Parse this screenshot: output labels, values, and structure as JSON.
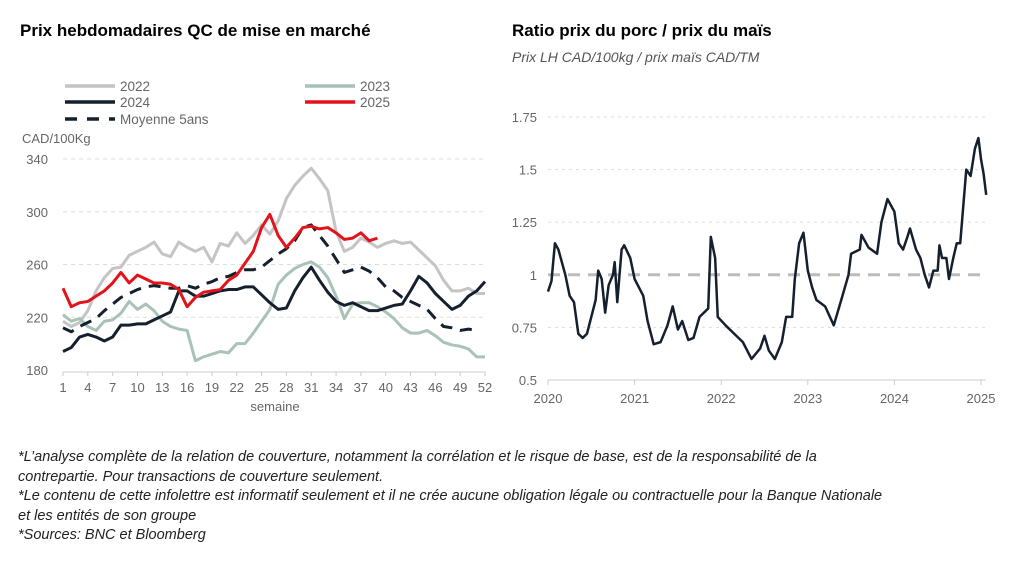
{
  "chart_data": [
    {
      "type": "line",
      "title": "Prix hebdomadaires QC de mise en marché",
      "ylabel": "CAD/100Kg",
      "xlabel": "semaine",
      "ylim": [
        180,
        340
      ],
      "yticks": [
        180,
        220,
        260,
        300,
        340
      ],
      "xticks": [
        1,
        4,
        7,
        10,
        13,
        16,
        19,
        22,
        25,
        28,
        31,
        34,
        37,
        40,
        43,
        46,
        49,
        52
      ],
      "grid": "horizontal-dashed",
      "legend": "top",
      "series": [
        {
          "name": "2022",
          "color": "#c4c4c4",
          "dash": false,
          "values": [
            217,
            213,
            216,
            225,
            240,
            250,
            257,
            258,
            267,
            270,
            273,
            277,
            268,
            266,
            277,
            273,
            270,
            273,
            262,
            276,
            274,
            284,
            276,
            282,
            290,
            283,
            293,
            310,
            320,
            327,
            333,
            325,
            316,
            285,
            270,
            273,
            280,
            277,
            273,
            276,
            278,
            276,
            277,
            271,
            265,
            259,
            248,
            240,
            240,
            242,
            238,
            238
          ]
        },
        {
          "name": "2023",
          "color": "#a9c2b6",
          "dash": false,
          "values": [
            222,
            217,
            219,
            213,
            210,
            217,
            218,
            223,
            232,
            226,
            230,
            225,
            217,
            213,
            211,
            210,
            187,
            190,
            192,
            194,
            193,
            200,
            200,
            208,
            217,
            226,
            245,
            252,
            257,
            260,
            262,
            258,
            250,
            236,
            219,
            230,
            231,
            231,
            228,
            224,
            219,
            212,
            208,
            208,
            210,
            206,
            201,
            199,
            198,
            196,
            190,
            190
          ]
        },
        {
          "name": "2024",
          "color": "#14202e",
          "dash": false,
          "values": [
            194,
            197,
            205,
            207,
            205,
            202,
            205,
            214,
            214,
            215,
            215,
            218,
            221,
            224,
            240,
            240,
            236,
            236,
            238,
            240,
            241,
            241,
            243,
            243,
            237,
            231,
            226,
            227,
            240,
            250,
            258,
            248,
            239,
            232,
            229,
            231,
            228,
            225,
            225,
            227,
            229,
            230,
            240,
            251,
            246,
            238,
            232,
            226,
            229,
            236,
            240,
            247
          ]
        },
        {
          "name": "2025",
          "color": "#e3131b",
          "dash": false,
          "values": [
            242,
            228,
            231,
            232,
            236,
            240,
            246,
            254,
            246,
            252,
            249,
            246,
            246,
            245,
            241,
            228,
            235,
            239,
            240,
            241,
            248,
            252,
            261,
            270,
            288,
            298,
            282,
            273,
            280,
            288,
            289,
            287,
            288,
            284,
            279,
            280,
            284,
            278,
            280
          ]
        },
        {
          "name": "Moyenne 5ans",
          "color": "#14202e",
          "dash": true,
          "values": [
            212,
            209,
            213,
            216,
            219,
            225,
            230,
            235,
            238,
            241,
            243,
            244,
            243,
            242,
            242,
            244,
            242,
            245,
            247,
            250,
            251,
            254,
            256,
            256,
            258,
            263,
            268,
            272,
            278,
            288,
            290,
            282,
            274,
            264,
            254,
            256,
            258,
            255,
            250,
            243,
            240,
            235,
            232,
            229,
            226,
            219,
            213,
            212,
            210,
            211,
            210
          ]
        }
      ]
    },
    {
      "type": "line",
      "title": "Ratio prix du porc / prix du maïs",
      "subtitle": "Prix LH CAD/100kg / prix maïs CAD/TM",
      "ylim": [
        0.5,
        1.75
      ],
      "yticks": [
        "0.5",
        "0.75",
        "1",
        "1.25",
        "1.5",
        "1.75"
      ],
      "xticks": [
        "2020",
        "2021",
        "2022",
        "2023",
        "2024",
        "2025"
      ],
      "xlim": [
        2020,
        2025.1
      ],
      "reference_line": 1,
      "grid": "horizontal-dashed",
      "series": [
        {
          "name": "Ratio",
          "color": "#14202e",
          "points": [
            [
              2020.0,
              0.92
            ],
            [
              2020.04,
              0.97
            ],
            [
              2020.08,
              1.15
            ],
            [
              2020.12,
              1.12
            ],
            [
              2020.2,
              1.0
            ],
            [
              2020.25,
              0.9
            ],
            [
              2020.3,
              0.87
            ],
            [
              2020.35,
              0.72
            ],
            [
              2020.4,
              0.7
            ],
            [
              2020.45,
              0.72
            ],
            [
              2020.5,
              0.8
            ],
            [
              2020.55,
              0.88
            ],
            [
              2020.58,
              1.02
            ],
            [
              2020.62,
              0.98
            ],
            [
              2020.66,
              0.82
            ],
            [
              2020.7,
              0.95
            ],
            [
              2020.75,
              1.0
            ],
            [
              2020.77,
              1.06
            ],
            [
              2020.8,
              0.87
            ],
            [
              2020.85,
              1.12
            ],
            [
              2020.88,
              1.14
            ],
            [
              2020.95,
              1.08
            ],
            [
              2021.0,
              0.98
            ],
            [
              2021.1,
              0.9
            ],
            [
              2021.15,
              0.78
            ],
            [
              2021.22,
              0.67
            ],
            [
              2021.3,
              0.68
            ],
            [
              2021.38,
              0.76
            ],
            [
              2021.44,
              0.85
            ],
            [
              2021.5,
              0.74
            ],
            [
              2021.55,
              0.78
            ],
            [
              2021.62,
              0.69
            ],
            [
              2021.68,
              0.7
            ],
            [
              2021.75,
              0.8
            ],
            [
              2021.8,
              0.82
            ],
            [
              2021.85,
              0.84
            ],
            [
              2021.88,
              1.18
            ],
            [
              2021.93,
              1.08
            ],
            [
              2021.96,
              0.8
            ],
            [
              2022.05,
              0.76
            ],
            [
              2022.15,
              0.72
            ],
            [
              2022.25,
              0.68
            ],
            [
              2022.35,
              0.6
            ],
            [
              2022.45,
              0.65
            ],
            [
              2022.5,
              0.71
            ],
            [
              2022.55,
              0.64
            ],
            [
              2022.62,
              0.6
            ],
            [
              2022.7,
              0.68
            ],
            [
              2022.75,
              0.8
            ],
            [
              2022.82,
              0.8
            ],
            [
              2022.85,
              0.98
            ],
            [
              2022.9,
              1.15
            ],
            [
              2022.95,
              1.2
            ],
            [
              2023.0,
              1.02
            ],
            [
              2023.05,
              0.94
            ],
            [
              2023.1,
              0.88
            ],
            [
              2023.2,
              0.85
            ],
            [
              2023.3,
              0.76
            ],
            [
              2023.4,
              0.9
            ],
            [
              2023.47,
              1.0
            ],
            [
              2023.5,
              1.1
            ],
            [
              2023.6,
              1.12
            ],
            [
              2023.62,
              1.19
            ],
            [
              2023.7,
              1.13
            ],
            [
              2023.8,
              1.1
            ],
            [
              2023.85,
              1.25
            ],
            [
              2023.92,
              1.36
            ],
            [
              2024.0,
              1.3
            ],
            [
              2024.05,
              1.15
            ],
            [
              2024.1,
              1.12
            ],
            [
              2024.15,
              1.18
            ],
            [
              2024.18,
              1.22
            ],
            [
              2024.25,
              1.12
            ],
            [
              2024.3,
              1.08
            ],
            [
              2024.35,
              1.0
            ],
            [
              2024.4,
              0.94
            ],
            [
              2024.45,
              1.02
            ],
            [
              2024.5,
              1.02
            ],
            [
              2024.52,
              1.14
            ],
            [
              2024.55,
              1.08
            ],
            [
              2024.6,
              1.08
            ],
            [
              2024.63,
              0.98
            ],
            [
              2024.68,
              1.08
            ],
            [
              2024.72,
              1.15
            ],
            [
              2024.76,
              1.15
            ],
            [
              2024.8,
              1.35
            ],
            [
              2024.83,
              1.5
            ],
            [
              2024.88,
              1.47
            ],
            [
              2024.93,
              1.6
            ],
            [
              2024.97,
              1.65
            ],
            [
              2025.0,
              1.55
            ],
            [
              2025.03,
              1.48
            ],
            [
              2025.06,
              1.38
            ]
          ]
        }
      ]
    }
  ],
  "footnotes": [
    "*L’analyse complète de la relation de couverture, notamment la corrélation et le risque de base, est de la responsabilité de la contrepartie. Pour transactions de couverture seulement.",
    "*Le contenu de cette infolettre est informatif seulement et il ne crée aucune obligation légale ou contractuelle pour la Banque Nationale et les entités de son groupe",
    "*Sources: BNC et Bloomberg"
  ]
}
